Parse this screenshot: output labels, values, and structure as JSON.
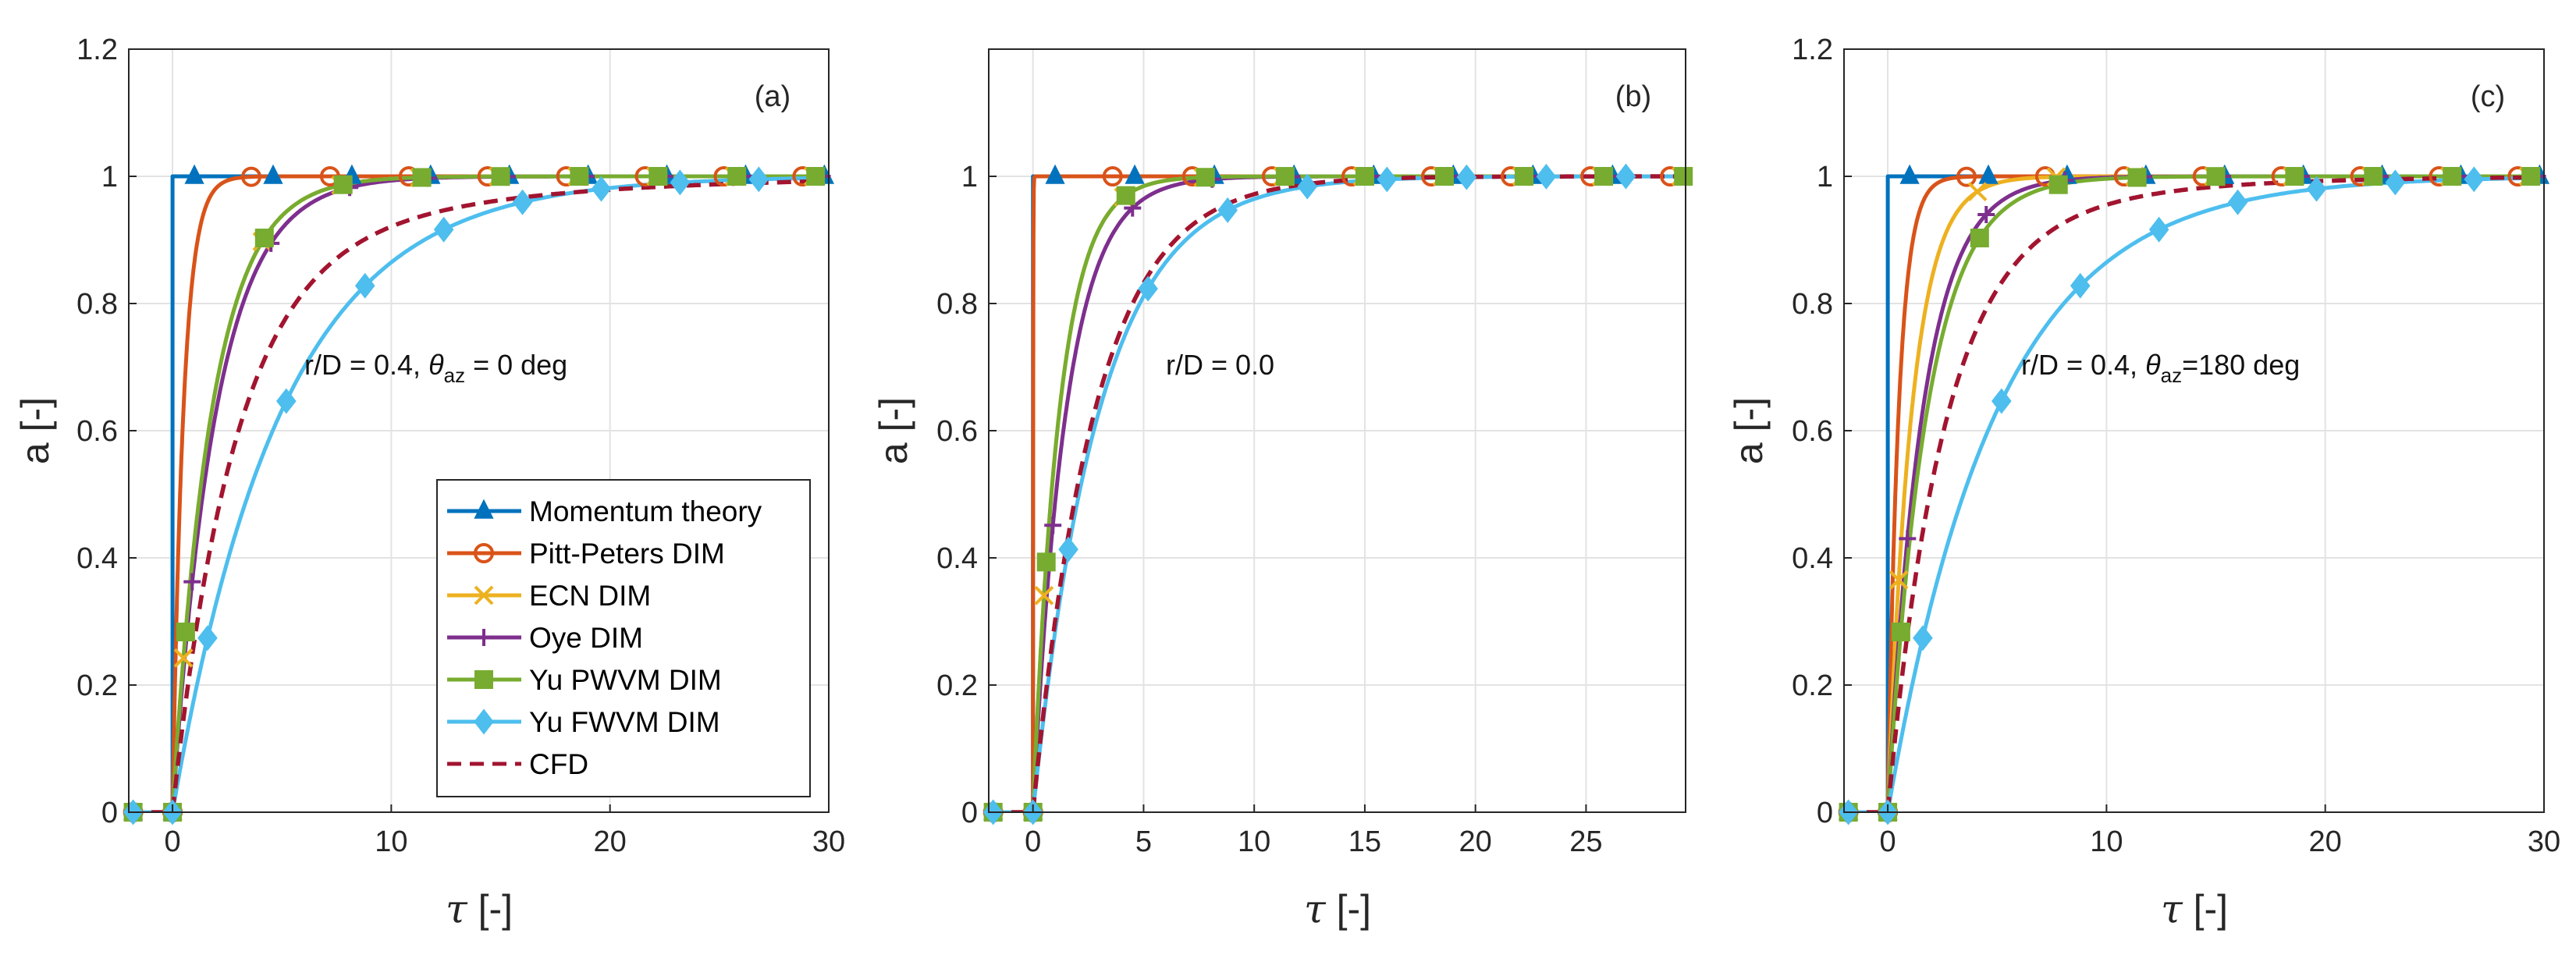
{
  "colors": {
    "momentum": "#0072BD",
    "pitt_peters": "#D95319",
    "ecn": "#EDB120",
    "oye": "#7E2F8E",
    "yu_pwvm": "#77AC30",
    "yu_fwvm": "#4DBEEE",
    "cfd": "#A2142F"
  },
  "legend": {
    "entries": [
      {
        "key": "momentum",
        "label": "Momentum theory",
        "marker": "triangle",
        "dashed": false
      },
      {
        "key": "pitt_peters",
        "label": "Pitt-Peters DIM",
        "marker": "circle",
        "dashed": false
      },
      {
        "key": "ecn",
        "label": "ECN DIM",
        "marker": "x",
        "dashed": false
      },
      {
        "key": "oye",
        "label": "Oye DIM",
        "marker": "plus",
        "dashed": false
      },
      {
        "key": "yu_pwvm",
        "label": "Yu PWVM DIM",
        "marker": "square",
        "dashed": false
      },
      {
        "key": "yu_fwvm",
        "label": "Yu FWVM DIM",
        "marker": "diamond",
        "dashed": false
      },
      {
        "key": "cfd",
        "label": "CFD",
        "marker": "none",
        "dashed": true
      }
    ]
  },
  "chart_data": [
    {
      "type": "line",
      "panel_label": "(a)",
      "annotation": {
        "pre": "r/D = 0.4, ",
        "theta": "θ",
        "sub": "az",
        "post": " = 0 deg"
      },
      "xlabel_symbol": "τ",
      "xlabel_unit": " [-]",
      "ylabel": "a [-]",
      "xlim": [
        -2,
        30
      ],
      "ylim": [
        0,
        1.2
      ],
      "xticks": [
        0,
        10,
        20,
        30
      ],
      "yticks": [
        0,
        0.2,
        0.4,
        0.6,
        0.8,
        1,
        1.2
      ],
      "ytick_labels": [
        "0",
        "0.2",
        "0.4",
        "0.6",
        "0.8",
        "1",
        "1.2"
      ],
      "marker_step": 3.6,
      "time_constants": {
        "momentum": 0,
        "pitt_peters": 0.5,
        "ecn": 1.8,
        "oye": 2.0,
        "yu_pwvm": 1.8,
        "yu_fwvm": 5.0,
        "cfd": 2.8
      },
      "cfd_tail": {
        "amp": 0.15,
        "tau": 10
      },
      "show_legend": true
    },
    {
      "type": "line",
      "panel_label": "(b)",
      "annotation": {
        "pre": "r/D = 0.0",
        "theta": "",
        "sub": "",
        "post": ""
      },
      "xlabel_symbol": "τ",
      "xlabel_unit": " [-]",
      "ylabel": "a [-]",
      "xlim": [
        -2,
        29.5
      ],
      "ylim": [
        0,
        1.2
      ],
      "xticks": [
        0,
        5,
        10,
        15,
        20,
        25
      ],
      "yticks": [
        0,
        0.2,
        0.4,
        0.6,
        0.8,
        1
      ],
      "ytick_labels": [
        "0",
        "0.2",
        "0.4",
        "0.6",
        "0.8",
        "1"
      ],
      "marker_step": 3.6,
      "time_constants": {
        "momentum": 0,
        "pitt_peters": 0.01,
        "ecn": 1.2,
        "oye": 1.5,
        "yu_pwvm": 1.2,
        "yu_fwvm": 3.0,
        "cfd": 2.8
      },
      "cfd_tail": {
        "amp": 0.0,
        "tau": 10
      },
      "show_legend": false
    },
    {
      "type": "line",
      "panel_label": "(c)",
      "annotation": {
        "pre": "r/D = 0.4, ",
        "theta": "θ",
        "sub": "az",
        "post": "=180 deg"
      },
      "xlabel_symbol": "τ",
      "xlabel_unit": " [-]",
      "ylabel": "a [-]",
      "xlim": [
        -2,
        30
      ],
      "ylim": [
        0,
        1.2
      ],
      "xticks": [
        0,
        10,
        20,
        30
      ],
      "yticks": [
        0,
        0.2,
        0.4,
        0.6,
        0.8,
        1,
        1.2
      ],
      "ytick_labels": [
        "0",
        "0.2",
        "0.4",
        "0.6",
        "0.8",
        "1",
        "1.2"
      ],
      "marker_step": 3.6,
      "time_constants": {
        "momentum": 0,
        "pitt_peters": 0.5,
        "ecn": 1.1,
        "oye": 1.6,
        "yu_pwvm": 1.8,
        "yu_fwvm": 5.0,
        "cfd": 2.5
      },
      "cfd_tail": {
        "amp": 0.12,
        "tau": 7
      },
      "show_legend": false
    }
  ]
}
